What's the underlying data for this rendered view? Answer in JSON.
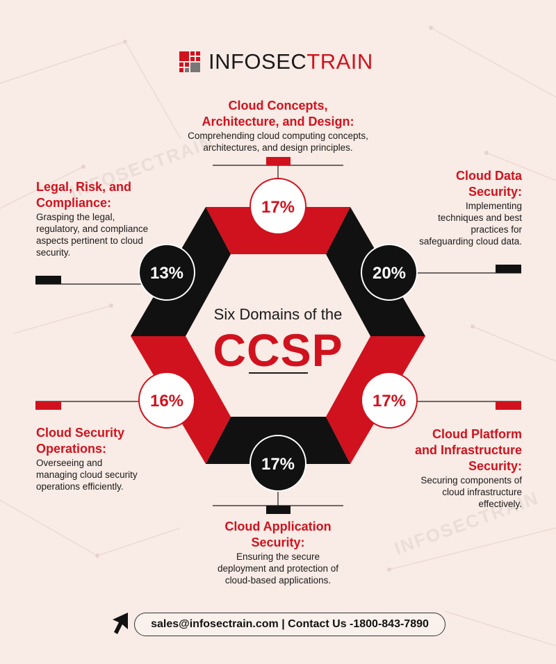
{
  "brand": {
    "prefix": "INFOSEC",
    "suffix": "TRAIN"
  },
  "center": {
    "subtitle": "Six Domains of the",
    "title": "CCSP"
  },
  "domains": {
    "concepts": {
      "title_1": "Cloud Concepts,",
      "title_2": "Architecture, and Design:",
      "desc_1": "Comprehending cloud computing concepts,",
      "desc_2": "architectures, and design principles.",
      "percent": "17%"
    },
    "data": {
      "title_1": "Cloud Data",
      "title_2": "Security:",
      "desc_1": "Implementing",
      "desc_2": "techniques and best",
      "desc_3": "practices for",
      "desc_4": "safeguarding cloud data.",
      "percent": "20%"
    },
    "platform": {
      "title_1": "Cloud Platform",
      "title_2": "and Infrastructure",
      "title_3": "Security:",
      "desc_1": "Securing components of",
      "desc_2": "cloud infrastructure",
      "desc_3": "effectively.",
      "percent": "17%"
    },
    "application": {
      "title_1": "Cloud Application",
      "title_2": "Security:",
      "desc_1": "Ensuring the secure",
      "desc_2": "deployment and protection of",
      "desc_3": "cloud-based applications.",
      "percent": "17%"
    },
    "operations": {
      "title_1": "Cloud Security",
      "title_2": "Operations:",
      "desc_1": "Overseeing and",
      "desc_2": "managing cloud security",
      "desc_3": "operations efficiently.",
      "percent": "16%"
    },
    "legal": {
      "title_1": "Legal, Risk, and",
      "title_2": "Compliance:",
      "desc_1": "Grasping the legal,",
      "desc_2": "regulatory, and compliance",
      "desc_3": "aspects pertinent to cloud",
      "desc_4": "security.",
      "percent": "13%"
    }
  },
  "contact": "sales@infosectrain.com | Contact Us -1800-843-7890",
  "watermark": "INFOSECTRAIN",
  "colors": {
    "red": "#d0121e",
    "black": "#111111",
    "background": "#f9ebe5"
  }
}
